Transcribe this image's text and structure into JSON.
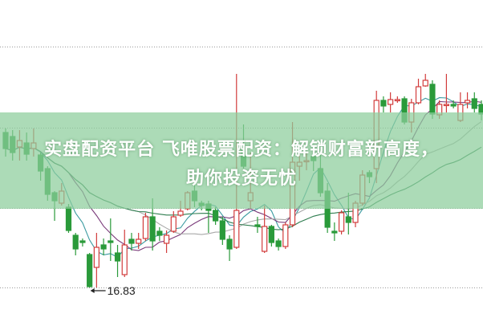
{
  "banner": {
    "line1": "实盘配资平台 飞唯股票配资：解锁财富新高度，",
    "line2": "助你投资无忧"
  },
  "chart_data": {
    "type": "candlestick",
    "title": "",
    "xlabel": "",
    "ylabel": "",
    "grid": "horizontal dotted",
    "colors": {
      "up": "#d23c3c",
      "down": "#2a9a3a",
      "ma": [
        "#3a9aa0",
        "#7a3a7a",
        "#a8a8a8",
        "#2e7d4f"
      ]
    },
    "ma_periods": [
      5,
      10,
      20,
      30
    ],
    "low_label": "16.83",
    "ylim": [
      16.83,
      22.83
    ],
    "ohlc_fields": [
      "open",
      "close",
      "high",
      "low"
    ],
    "candles": [
      [
        20.69,
        20.29,
        20.79,
        20.09
      ],
      [
        20.59,
        20.19,
        20.75,
        19.99
      ],
      [
        20.33,
        20.49,
        20.75,
        19.99
      ],
      [
        20.43,
        20.15,
        20.69,
        19.99
      ],
      [
        20.29,
        20.43,
        20.79,
        20.09
      ],
      [
        20.13,
        19.73,
        20.19,
        19.49
      ],
      [
        19.79,
        19.15,
        19.85,
        18.99
      ],
      [
        19.19,
        18.99,
        19.23,
        18.49
      ],
      [
        18.93,
        19.23,
        19.43,
        18.87
      ],
      [
        18.83,
        18.25,
        18.91,
        18.19
      ],
      [
        18.13,
        17.79,
        18.19,
        17.63
      ],
      [
        17.99,
        17.95,
        18.05,
        17.85
      ],
      [
        17.65,
        16.85,
        17.69,
        16.83
      ],
      [
        17.33,
        17.83,
        18.19,
        16.83
      ],
      [
        17.89,
        17.79,
        18.05,
        17.63
      ],
      [
        17.99,
        17.95,
        18.55,
        17.49
      ],
      [
        17.69,
        17.49,
        17.89,
        17.09
      ],
      [
        17.15,
        17.89,
        18.27,
        17.09
      ],
      [
        18.03,
        17.93,
        18.19,
        17.75
      ],
      [
        17.93,
        18.03,
        18.19,
        17.79
      ],
      [
        18.05,
        18.59,
        18.69,
        17.99
      ],
      [
        18.59,
        17.99,
        19.05,
        17.75
      ],
      [
        18.23,
        18.13,
        18.33,
        17.99
      ],
      [
        17.93,
        18.13,
        18.25,
        17.69
      ],
      [
        18.23,
        18.59,
        18.73,
        18.19
      ],
      [
        18.63,
        18.73,
        18.99,
        18.59
      ],
      [
        18.79,
        19.19,
        19.23,
        18.75
      ],
      [
        19.23,
        18.99,
        19.43,
        18.83
      ],
      [
        18.93,
        18.87,
        18.99,
        18.75
      ],
      [
        18.91,
        18.75,
        18.99,
        18.19
      ],
      [
        18.75,
        18.49,
        18.83,
        18.39
      ],
      [
        18.49,
        18.03,
        18.59,
        17.89
      ],
      [
        18.03,
        17.79,
        18.13,
        17.49
      ],
      [
        17.83,
        18.75,
        22.15,
        17.79
      ],
      [
        20.33,
        19.85,
        20.89,
        19.79
      ],
      [
        18.99,
        19.19,
        20.19,
        18.79
      ],
      [
        18.39,
        18.35,
        18.59,
        18.19
      ],
      [
        17.73,
        18.35,
        18.87,
        17.69
      ],
      [
        18.35,
        17.95,
        18.39,
        17.85
      ],
      [
        17.99,
        17.85,
        18.05,
        17.75
      ],
      [
        17.85,
        18.39,
        18.45,
        17.79
      ],
      [
        18.39,
        19.95,
        20.95,
        18.33
      ],
      [
        19.85,
        19.95,
        20.19,
        19.49
      ],
      [
        19.99,
        19.99,
        20.19,
        19.75
      ],
      [
        20.09,
        19.99,
        20.19,
        19.73
      ],
      [
        19.79,
        19.19,
        20.19,
        19.09
      ],
      [
        19.23,
        18.33,
        19.43,
        18.19
      ],
      [
        18.23,
        18.19,
        18.45,
        17.99
      ],
      [
        18.23,
        18.69,
        18.75,
        18.15
      ],
      [
        18.59,
        18.45,
        19.19,
        18.15
      ],
      [
        18.45,
        18.93,
        18.99,
        18.33
      ],
      [
        18.93,
        19.63,
        19.75,
        18.87
      ],
      [
        19.69,
        19.59,
        19.75,
        19.43
      ],
      [
        19.79,
        21.49,
        21.73,
        19.43
      ],
      [
        21.49,
        21.35,
        21.59,
        21.19
      ],
      [
        21.39,
        21.51,
        21.69,
        21.19
      ],
      [
        21.51,
        21.51,
        21.59,
        21.43
      ],
      [
        21.53,
        20.95,
        21.59,
        20.89
      ],
      [
        20.95,
        21.43,
        21.53,
        20.69
      ],
      [
        21.43,
        21.83,
        22.03,
        21.39
      ],
      [
        21.85,
        21.99,
        22.15,
        21.83
      ],
      [
        21.89,
        21.15,
        21.99,
        21.03
      ],
      [
        21.13,
        21.39,
        21.49,
        21.03
      ],
      [
        21.39,
        21.39,
        22.15,
        21.19
      ],
      [
        21.39,
        21.35,
        21.49,
        21.29
      ],
      [
        20.99,
        21.39,
        21.69,
        20.95
      ],
      [
        21.43,
        21.49,
        21.69,
        21.29
      ],
      [
        21.53,
        21.29,
        21.69,
        21.19
      ],
      [
        21.39,
        21.15,
        21.49,
        20.99
      ]
    ]
  }
}
